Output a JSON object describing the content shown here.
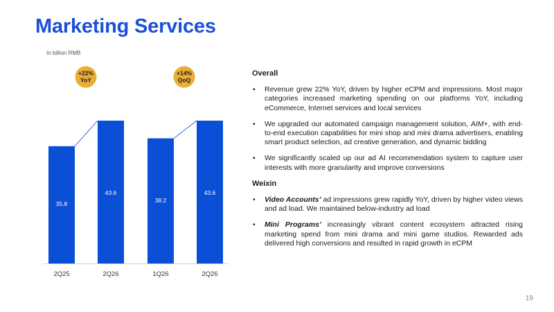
{
  "title": "Marketing Services",
  "unit_note": "In billion RMB",
  "colors": {
    "bar": "#0a4fd6",
    "badge": "#e9ad38",
    "accent": "#1a4fd8"
  },
  "chart_data": [
    {
      "type": "bar",
      "categories": [
        "2Q25",
        "2Q26"
      ],
      "values": [
        35.8,
        43.6
      ],
      "labels": [
        "35.8",
        "43.6"
      ],
      "badge": [
        "+22%",
        "YoY"
      ]
    },
    {
      "type": "bar",
      "categories": [
        "1Q26",
        "2Q26"
      ],
      "values": [
        38.2,
        43.6
      ],
      "labels": [
        "38.2",
        "43.6"
      ],
      "badge": [
        "+14%",
        "QoQ"
      ]
    }
  ],
  "overall": {
    "heading": "Overall",
    "bullets": [
      {
        "pre": "",
        "em": "",
        "text": "Revenue grew 22% YoY, driven by higher eCPM and impressions. Most major categories increased marketing spending on our platforms YoY, including eCommerce, Internet services and local services"
      },
      {
        "pre": "We upgraded our automated campaign management solution, ",
        "it": "AIM+",
        "text": ", with end-to-end execution capabilities for mini shop and mini drama advertisers, enabling smart product selection, ad creative generation, and dynamic bidding"
      },
      {
        "pre": "",
        "em": "",
        "text": "We significantly scaled up our ad AI recommendation system to capture user interests with more granularity and improve conversions"
      }
    ]
  },
  "weixin": {
    "heading": "Weixin",
    "bullets": [
      {
        "em": "Video Accounts’",
        "text": " ad impressions grew rapidly YoY, driven by higher video views and ad load. We maintained below-industry ad load"
      },
      {
        "em": "Mini Programs’",
        "text": " increasingly vibrant content ecosystem attracted rising marketing spend from mini drama and mini game studios. Rewarded ads delivered high conversions and resulted in rapid growth in eCPM"
      }
    ]
  },
  "bullet_char": "•",
  "page_number": "19"
}
